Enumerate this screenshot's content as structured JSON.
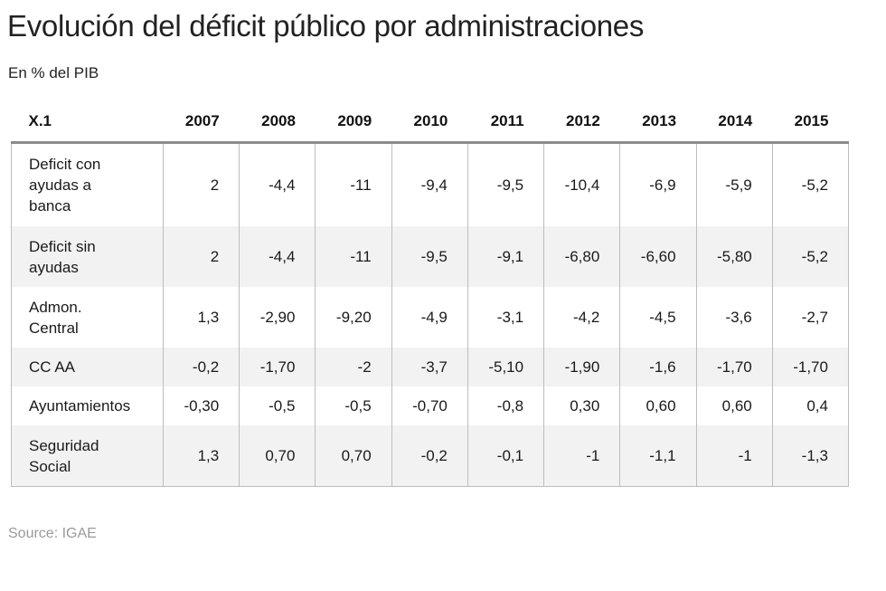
{
  "title": "Evolución del déficit público por administraciones",
  "subtitle": "En % del PIB",
  "source": "Source: IGAE",
  "chart_data": {
    "type": "table",
    "title": "Evolución del déficit público por administraciones",
    "subtitle": "En % del PIB",
    "corner_label": "X.1",
    "columns": [
      "2007",
      "2008",
      "2009",
      "2010",
      "2011",
      "2012",
      "2013",
      "2014",
      "2015"
    ],
    "rows": [
      {
        "label": "Deficit con ayudas a banca",
        "values": [
          "2",
          "-4,4",
          "-11",
          "-9,4",
          "-9,5",
          "-10,4",
          "-6,9",
          "-5,9",
          "-5,2"
        ]
      },
      {
        "label": "Deficit sin ayudas",
        "values": [
          "2",
          "-4,4",
          "-11",
          "-9,5",
          "-9,1",
          "-6,80",
          "-6,60",
          "-5,80",
          "-5,2"
        ]
      },
      {
        "label": "Admon. Central",
        "values": [
          "1,3",
          "-2,90",
          "-9,20",
          "-4,9",
          "-3,1",
          "-4,2",
          "-4,5",
          "-3,6",
          "-2,7"
        ]
      },
      {
        "label": "CC AA",
        "values": [
          "-0,2",
          "-1,70",
          "-2",
          "-3,7",
          "-5,10",
          "-1,90",
          "-1,6",
          "-1,70",
          "-1,70"
        ]
      },
      {
        "label": "Ayuntamientos",
        "values": [
          "-0,30",
          "-0,5",
          "-0,5",
          "-0,70",
          "-0,8",
          "0,30",
          "0,60",
          "0,60",
          "0,4"
        ]
      },
      {
        "label": "Seguridad Social",
        "values": [
          "1,3",
          "0,70",
          "0,70",
          "-0,2",
          "-0,1",
          "-1",
          "-1,1",
          "-1",
          "-1,3"
        ]
      }
    ],
    "source": "IGAE"
  }
}
